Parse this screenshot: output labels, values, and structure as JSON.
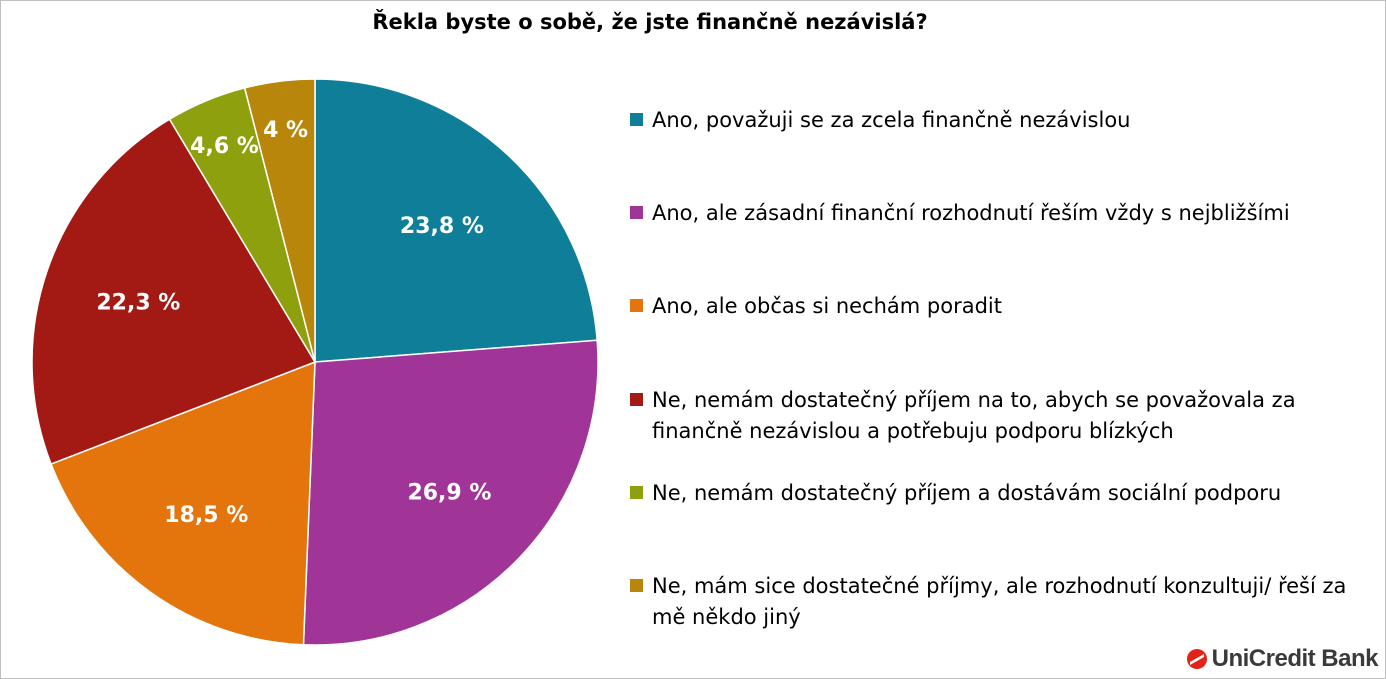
{
  "chart_data": {
    "type": "pie",
    "title": "Řekla byste o sobě, že jste finančně nezávislá?",
    "slices": [
      {
        "label": "Ano, považuji se za zcela finančně nezávislou",
        "value": 23.8,
        "value_label": "23,8 %",
        "color": "#0f7f99"
      },
      {
        "label": "Ano, ale zásadní finanční rozhodnutí řeším vždy s nejbližšími",
        "value": 26.9,
        "value_label": "26,9 %",
        "color": "#a03597"
      },
      {
        "label": "Ano, ale občas si nechám poradit",
        "value": 18.5,
        "value_label": "18,5 %",
        "color": "#e4740c"
      },
      {
        "label": "Ne, nemám dostatečný příjem na to, abych se považovala za finančně nezávislou a potřebuju podporu blízkých",
        "value": 22.3,
        "value_label": "22,3 %",
        "color": "#a21a13"
      },
      {
        "label": "Ne, nemám dostatečný příjem a dostávám sociální podporu",
        "value": 4.6,
        "value_label": "4,6 %",
        "color": "#8fa00e"
      },
      {
        "label": "Ne, mám sice dostatečné příjmy, ale rozhodnutí konzultuji/ řeší za mě někdo jiný",
        "value": 4.0,
        "value_label": "4 %",
        "color": "#b8860b"
      }
    ],
    "legend_position": "right"
  },
  "branding": {
    "logo_text": "UniCredit Bank",
    "logo_color": "#e2231a"
  }
}
